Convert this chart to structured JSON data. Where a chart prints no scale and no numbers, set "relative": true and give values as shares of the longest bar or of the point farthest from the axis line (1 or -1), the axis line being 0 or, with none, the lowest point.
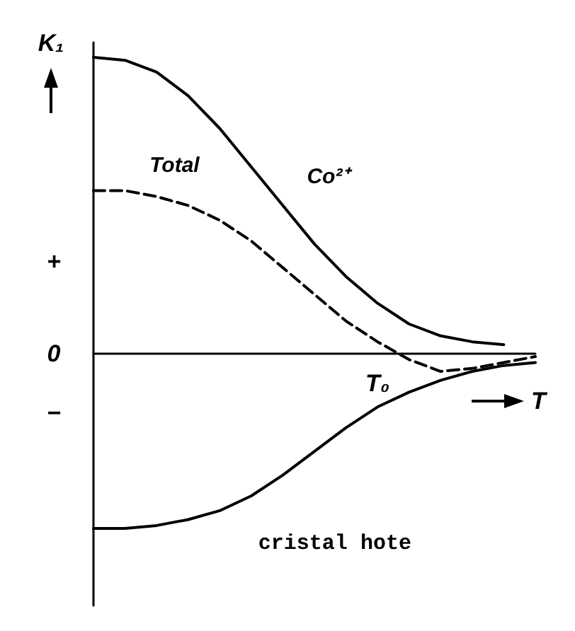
{
  "chart_data": {
    "type": "line",
    "relative": true,
    "ylabel": "K₁",
    "xlabel": "T",
    "legend": false,
    "grid": false,
    "marker": "none",
    "categories": [
      null,
      null,
      null,
      null,
      null,
      null,
      null,
      null,
      null,
      null,
      null,
      null,
      null,
      null,
      null
    ],
    "series": [
      {
        "name": "Co²⁺",
        "color": "#000000",
        "line_style": "solid",
        "values": [
          1.0,
          0.99,
          0.95,
          0.87,
          0.76,
          0.63,
          0.5,
          0.37,
          0.26,
          0.17,
          0.1,
          0.06,
          0.04,
          0.03,
          null
        ]
      },
      {
        "name": "Total",
        "color": "#000000",
        "line_style": "dashed",
        "values": [
          0.55,
          0.55,
          0.53,
          0.5,
          0.45,
          0.38,
          0.29,
          0.2,
          0.11,
          0.04,
          -0.02,
          -0.06,
          -0.05,
          -0.03,
          -0.01
        ]
      },
      {
        "name": "cristal hote",
        "color": "#000000",
        "line_style": "solid",
        "values": [
          -0.59,
          -0.59,
          -0.58,
          -0.56,
          -0.53,
          -0.48,
          -0.41,
          -0.33,
          -0.25,
          -0.18,
          -0.13,
          -0.09,
          -0.06,
          -0.04,
          -0.03
        ]
      }
    ],
    "annotations": [
      "+",
      "0",
      "−",
      "T₀"
    ]
  }
}
